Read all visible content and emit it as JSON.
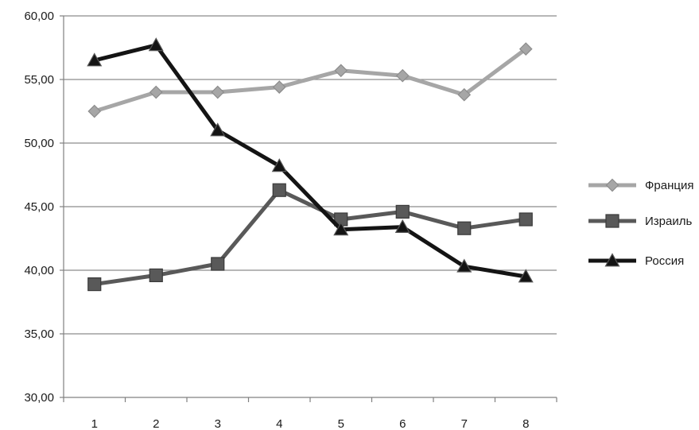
{
  "chart_data": {
    "type": "line",
    "title": "",
    "xlabel": "",
    "ylabel": "",
    "categories": [
      "1",
      "2",
      "3",
      "4",
      "5",
      "6",
      "7",
      "8"
    ],
    "ylim": [
      30,
      60
    ],
    "y_ticks": [
      "30,00",
      "35,00",
      "40,00",
      "45,00",
      "50,00",
      "55,00",
      "60,00"
    ],
    "grid": "horizontal",
    "legend_position": "right",
    "series": [
      {
        "name": "Франция",
        "marker": "diamond",
        "color": "#a6a6a6",
        "values": [
          52.5,
          54.0,
          54.0,
          54.4,
          55.7,
          55.3,
          53.8,
          57.4
        ]
      },
      {
        "name": "Израиль",
        "marker": "square",
        "color": "#595959",
        "values": [
          38.9,
          39.6,
          40.5,
          46.3,
          44.0,
          44.6,
          43.3,
          44.0
        ]
      },
      {
        "name": "Россия",
        "marker": "triangle",
        "color": "#141414",
        "values": [
          56.5,
          57.7,
          51.0,
          48.2,
          43.2,
          43.4,
          40.3,
          39.5
        ]
      }
    ]
  }
}
